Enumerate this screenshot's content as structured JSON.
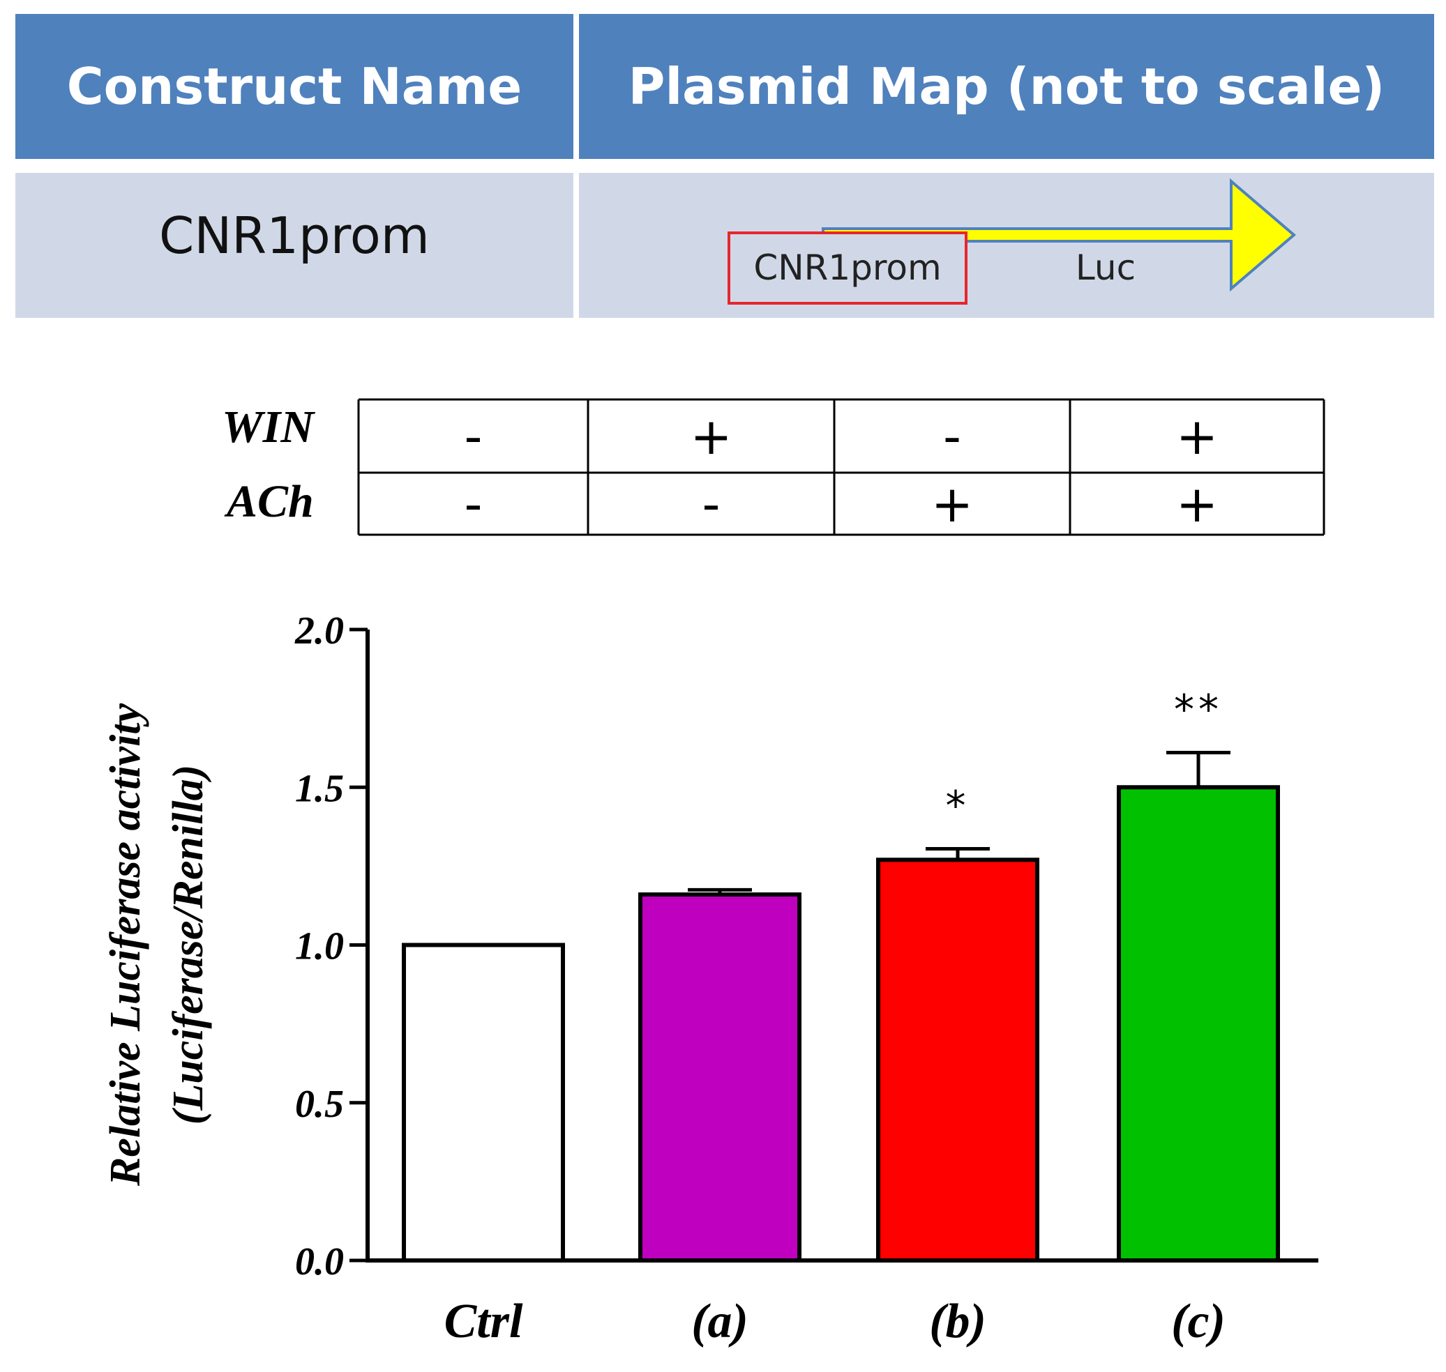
{
  "construct_table": {
    "header_name": "Construct Name",
    "header_map": "Plasmid Map (not to scale)",
    "row_name": "CNR1prom",
    "promoter_label": "CNR1prom",
    "reporter_label": "Luc",
    "colors": {
      "header": "#4f81bd",
      "row": "#d0d8e8",
      "promoter_border": "#e0201c",
      "reporter_fill": "#ffff00",
      "reporter_border": "#4f81bd"
    }
  },
  "treatment_table": {
    "rows": [
      {
        "label": "WIN",
        "cells": [
          "-",
          "+",
          "-",
          "+"
        ]
      },
      {
        "label": "ACh",
        "cells": [
          "-",
          "-",
          "+",
          "+"
        ]
      }
    ]
  },
  "chart_data": {
    "type": "bar",
    "categories": [
      "Ctrl",
      "(a)",
      "(b)",
      "(c)"
    ],
    "values": [
      1.0,
      1.16,
      1.27,
      1.5
    ],
    "errors": [
      0.0,
      0.015,
      0.035,
      0.11
    ],
    "significance": [
      "",
      "",
      "*",
      "**"
    ],
    "colors": [
      "#ffffff",
      "#bf00bf",
      "#ff0000",
      "#00c000"
    ],
    "ylabel_line1": "Relative Luciferase activity",
    "ylabel_line2": "(Luciferase/Renilla)",
    "ylim": [
      0,
      2.0
    ],
    "yticks": [
      "0.0",
      "0.5",
      "1.0",
      "1.5",
      "2.0"
    ],
    "ytick_values": [
      0,
      0.5,
      1.0,
      1.5,
      2.0
    ],
    "grid": false
  }
}
